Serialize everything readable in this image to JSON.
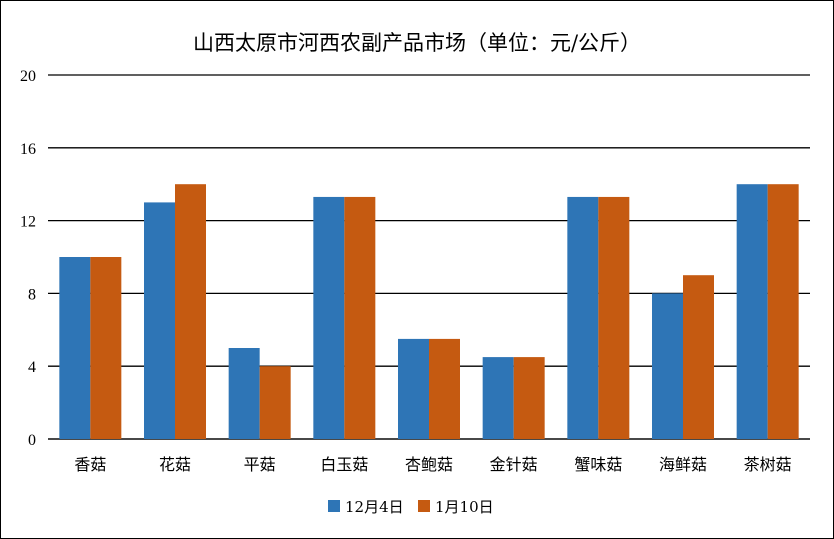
{
  "chart_data": {
    "type": "bar",
    "title": "山西太原市河西农副产品市场（单位：元/公斤）",
    "xlabel": "",
    "ylabel": "",
    "categories": [
      "香菇",
      "花菇",
      "平菇",
      "白玉菇",
      "杏鲍菇",
      "金针菇",
      "蟹味菇",
      "海鲜菇",
      "茶树菇"
    ],
    "series": [
      {
        "name": "12月4日",
        "color": "#2e75b6",
        "values": [
          10,
          13,
          5,
          13.3,
          5.5,
          4.5,
          13.3,
          8,
          14
        ]
      },
      {
        "name": "1月10日",
        "color": "#c55a11",
        "values": [
          10,
          14,
          4,
          13.3,
          5.5,
          4.5,
          13.3,
          9,
          14
        ]
      }
    ],
    "ylim": [
      0,
      20
    ],
    "yticks": [
      0,
      4,
      8,
      12,
      16,
      20
    ],
    "grid": true,
    "legend": "bottom"
  }
}
